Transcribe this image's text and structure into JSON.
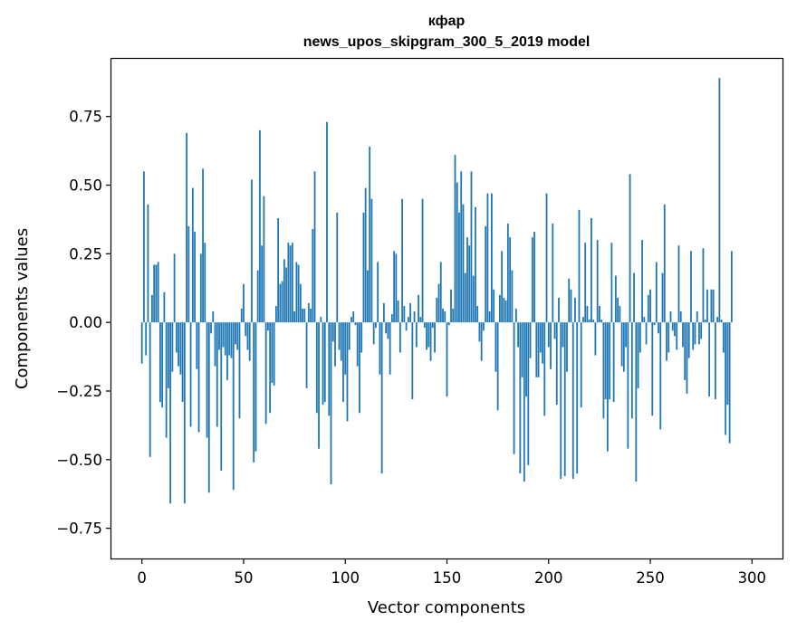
{
  "chart_data": {
    "type": "bar",
    "title_line1": "кфар",
    "title_line2": "news_upos_skipgram_300_5_2019 model",
    "xlabel": "Vector components",
    "ylabel": "Components values",
    "xlim": [
      -15,
      315
    ],
    "ylim": [
      -0.86,
      0.96
    ],
    "xticks": [
      0,
      50,
      100,
      150,
      200,
      250,
      300
    ],
    "yticks": [
      -0.75,
      -0.5,
      -0.25,
      0.0,
      0.25,
      0.5,
      0.75
    ],
    "ytick_labels": [
      "−0.75",
      "−0.50",
      "−0.25",
      "0.00",
      "0.25",
      "0.50",
      "0.75"
    ],
    "bar_color": "#1f77b4",
    "grid": false,
    "values": [
      -0.15,
      0.55,
      -0.12,
      0.43,
      -0.49,
      0.1,
      0.21,
      0.21,
      0.22,
      -0.29,
      -0.31,
      0.11,
      -0.42,
      -0.24,
      -0.66,
      -0.18,
      0.25,
      -0.11,
      -0.16,
      -0.19,
      -0.29,
      -0.66,
      0.69,
      0.35,
      -0.38,
      0.49,
      0.33,
      -0.17,
      -0.4,
      0.25,
      0.56,
      0.29,
      -0.42,
      -0.62,
      -0.04,
      0.04,
      -0.16,
      -0.38,
      -0.1,
      -0.54,
      -0.09,
      -0.12,
      -0.21,
      -0.12,
      -0.13,
      -0.61,
      -0.08,
      -0.1,
      -0.35,
      0.05,
      0.14,
      -0.05,
      -0.1,
      -0.14,
      0.52,
      -0.51,
      -0.47,
      0.19,
      0.7,
      0.28,
      0.46,
      -0.37,
      -0.03,
      -0.33,
      -0.22,
      -0.23,
      0.06,
      0.38,
      0.14,
      0.15,
      0.23,
      0.2,
      0.29,
      0.28,
      0.29,
      0.04,
      0.22,
      0.21,
      0.14,
      0.05,
      0.05,
      -0.24,
      0.07,
      0.05,
      0.34,
      0.55,
      -0.33,
      -0.46,
      0.02,
      -0.3,
      -0.29,
      0.73,
      -0.34,
      -0.59,
      -0.07,
      -0.16,
      0.4,
      -0.1,
      -0.14,
      -0.29,
      -0.19,
      -0.36,
      -0.1,
      0.02,
      0.04,
      -0.01,
      -0.16,
      -0.33,
      -0.11,
      0.4,
      0.49,
      0.19,
      0.64,
      0.45,
      -0.08,
      -0.02,
      0.22,
      -0.19,
      -0.55,
      0.07,
      -0.04,
      -0.06,
      -0.19,
      0.03,
      0.26,
      0.25,
      0.08,
      -0.11,
      0.45,
      0.06,
      -0.03,
      0.02,
      0.07,
      -0.28,
      0.04,
      -0.09,
      0.1,
      0.02,
      0.45,
      -0.02,
      -0.1,
      -0.09,
      -0.14,
      -0.02,
      -0.11,
      0.09,
      0.14,
      0.22,
      0.05,
      0.04,
      -0.27,
      -0.01,
      0.12,
      0.05,
      0.61,
      0.51,
      0.4,
      0.55,
      0.43,
      0.18,
      0.31,
      0.28,
      0.55,
      0.17,
      0.42,
      0.06,
      -0.07,
      -0.14,
      -0.03,
      0.35,
      0.47,
      0.04,
      0.47,
      0.12,
      -0.18,
      -0.32,
      0.1,
      0.26,
      0.09,
      0.08,
      0.36,
      0.31,
      0.19,
      -0.48,
      0.05,
      -0.09,
      -0.55,
      -0.2,
      -0.58,
      -0.27,
      -0.52,
      -0.13,
      0.31,
      0.33,
      -0.2,
      -0.2,
      -0.11,
      -0.15,
      -0.34,
      0.47,
      -0.09,
      -0.17,
      0.36,
      -0.06,
      -0.3,
      0.09,
      -0.57,
      -0.09,
      -0.56,
      -0.18,
      0.16,
      0.12,
      -0.57,
      0.09,
      -0.55,
      0.41,
      -0.31,
      0.02,
      0.29,
      0.06,
      0.01,
      0.38,
      0.01,
      -0.12,
      0.3,
      0.06,
      0.01,
      -0.35,
      -0.28,
      -0.47,
      -0.28,
      0.29,
      -0.29,
      0.17,
      0.09,
      0.06,
      -0.16,
      -0.18,
      -0.09,
      -0.46,
      0.54,
      -0.35,
      0.18,
      -0.58,
      -0.24,
      -0.11,
      0.3,
      0.02,
      -0.08,
      0.1,
      0.12,
      -0.34,
      -0.01,
      0.22,
      -0.04,
      -0.39,
      0.18,
      0.43,
      -0.14,
      -0.11,
      0.04,
      -0.03,
      -0.05,
      -0.1,
      0.28,
      0.04,
      -0.09,
      -0.21,
      -0.26,
      -0.13,
      0.26,
      -0.1,
      -0.08,
      0.04,
      -0.08,
      -0.06,
      0.27,
      0.01,
      0.12,
      -0.27,
      0.12,
      0.12,
      -0.28,
      0.02,
      0.89,
      0.01,
      -0.11,
      -0.41,
      -0.3,
      -0.44,
      0.26
    ]
  }
}
